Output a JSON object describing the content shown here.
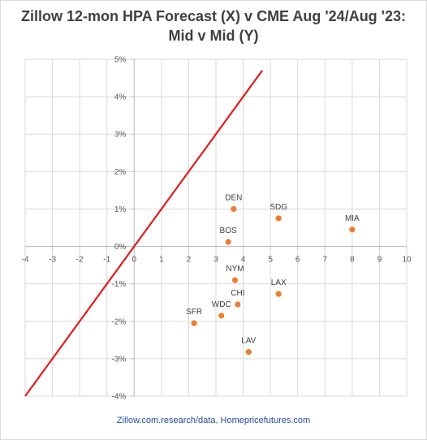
{
  "chart_data": {
    "type": "scatter",
    "title": "Zillow 12-mon HPA Forecast (X) v CME Aug '24/Aug '23: Mid v Mid (Y)",
    "xlim": [
      -4,
      10
    ],
    "ylim": [
      -4,
      5
    ],
    "x_ticks": [
      -4,
      -3,
      -2,
      -1,
      0,
      1,
      2,
      3,
      4,
      5,
      6,
      7,
      8,
      9,
      10
    ],
    "y_ticks": [
      -4,
      -3,
      -2,
      -1,
      0,
      1,
      2,
      3,
      4,
      5
    ],
    "y_tick_labels": [
      "-4%",
      "-3%",
      "-2%",
      "-1%",
      "0%",
      "1%",
      "2%",
      "3%",
      "4%",
      "5%"
    ],
    "grid": true,
    "legend": "none",
    "marker_color": "#ED7D31",
    "line_color": "#E31A1C",
    "reference_line": {
      "type": "y=x",
      "x_range": [
        -4,
        4.7
      ]
    },
    "points": [
      {
        "label": "DEN",
        "x": 3.65,
        "y": 1.0
      },
      {
        "label": "SDG",
        "x": 5.3,
        "y": 0.75
      },
      {
        "label": "MIA",
        "x": 8.0,
        "y": 0.45
      },
      {
        "label": "BOS",
        "x": 3.45,
        "y": 0.12
      },
      {
        "label": "NYM",
        "x": 3.7,
        "y": -0.9
      },
      {
        "label": "LAX",
        "x": 5.3,
        "y": -1.27
      },
      {
        "label": "CHI",
        "x": 3.8,
        "y": -1.55
      },
      {
        "label": "WDC",
        "x": 3.2,
        "y": -1.85
      },
      {
        "label": "SFR",
        "x": 2.2,
        "y": -2.05
      },
      {
        "label": "LAV",
        "x": 4.2,
        "y": -2.82
      }
    ]
  },
  "source_text": "Zillow.com.research/data, Homepricefutures.com"
}
